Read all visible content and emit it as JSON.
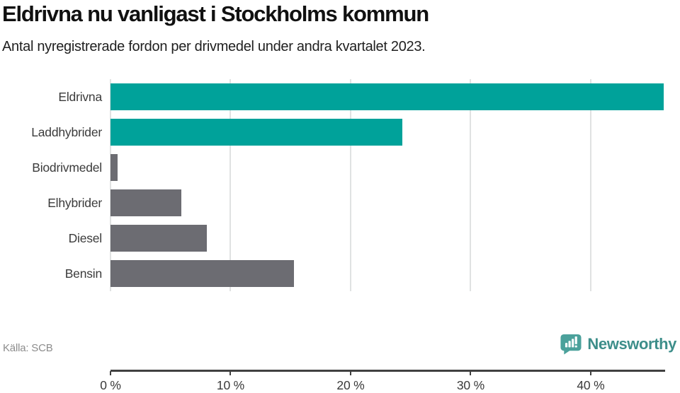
{
  "header": {
    "title": "Eldrivna nu vanligast i Stockholms kommun",
    "subtitle": "Antal nyregistrerade fordon per drivmedel under andra kvartalet 2023."
  },
  "chart_data": {
    "type": "bar",
    "orientation": "horizontal",
    "title": "Eldrivna nu vanligast i Stockholms kommun",
    "subtitle": "Antal nyregistrerade fordon per drivmedel under andra kvartalet 2023.",
    "categories": [
      "Eldrivna",
      "Laddhybrider",
      "Biodrivmedel",
      "Elhybrider",
      "Diesel",
      "Bensin"
    ],
    "values": [
      46.1,
      24.3,
      0.6,
      5.9,
      8.0,
      15.3
    ],
    "unit": "%",
    "bar_colors": [
      "#00a29a",
      "#00a29a",
      "#6c6c72",
      "#6c6c72",
      "#6c6c72",
      "#6c6c72"
    ],
    "xlim": [
      0,
      46.2
    ],
    "tick_values": [
      0,
      10,
      20,
      30,
      40
    ],
    "tick_labels": [
      "0 %",
      "10 %",
      "20 %",
      "30 %",
      "40 %"
    ],
    "grid": "vertical-light",
    "legend": "none",
    "colors": {
      "accent": "#00a29a",
      "muted_bar": "#6c6c72",
      "gridline": "#e0e2e2",
      "axis": "#404040"
    }
  },
  "footer": {
    "source": "Källa: SCB",
    "brand": "Newsworthy",
    "brand_color": "#3d8e8a",
    "brand_icon": "newsworthy-speech-bubble-chart-icon",
    "brand_icon_color": "#4ba19b"
  }
}
